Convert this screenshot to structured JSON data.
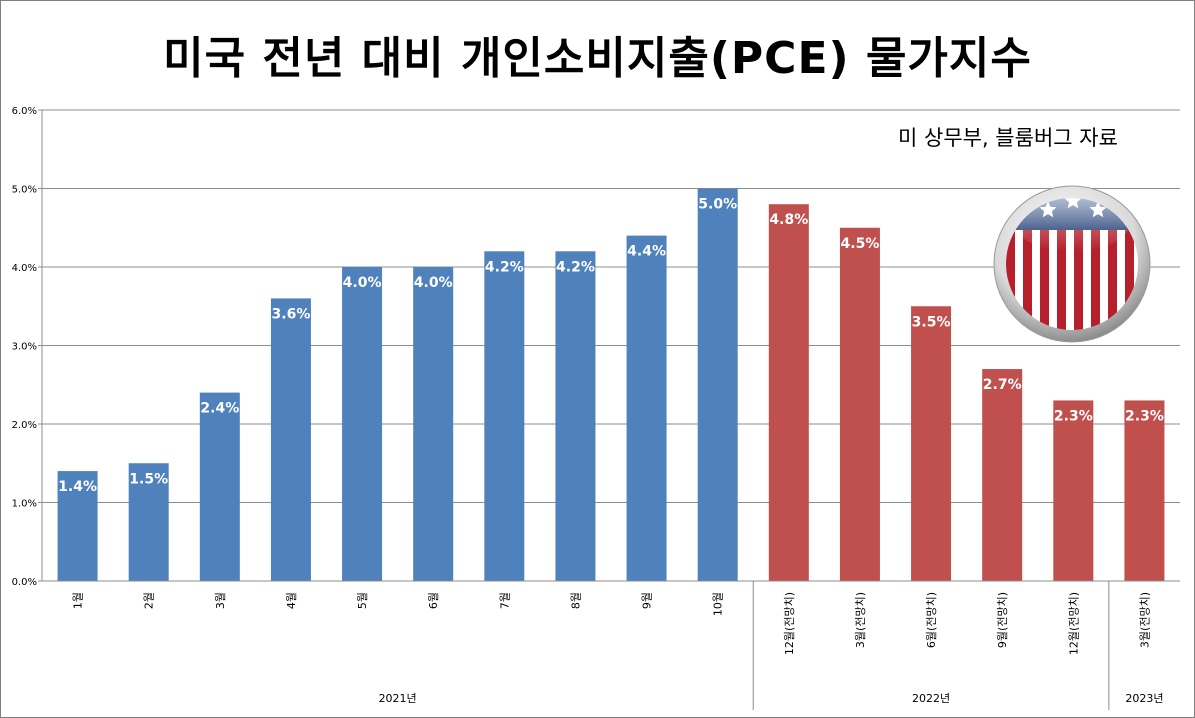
{
  "chart_data": {
    "type": "bar",
    "title": "미국 전년 대비 개인소비지출(PCE) 물가지수",
    "source_note": "미 상무부, 블룸버그 자료",
    "categories": [
      "1월",
      "2월",
      "3월",
      "4월",
      "5월",
      "6월",
      "7월",
      "8월",
      "9월",
      "10월",
      "12월(전망치)",
      "3월(전망치)",
      "6월(전망치)",
      "9월(전망치)",
      "12월(전망치)",
      "3월(전망치)"
    ],
    "groups": [
      {
        "label": "2021년",
        "from": 0,
        "to": 9
      },
      {
        "label": "2022년",
        "from": 10,
        "to": 14
      },
      {
        "label": "2023년",
        "from": 15,
        "to": 15
      }
    ],
    "values": [
      1.4,
      1.5,
      2.4,
      3.6,
      4.0,
      4.0,
      4.2,
      4.2,
      4.4,
      5.0,
      4.8,
      4.5,
      3.5,
      2.7,
      2.3,
      2.3
    ],
    "data_labels": [
      "1.4%",
      "1.5%",
      "2.4%",
      "3.6%",
      "4.0%",
      "4.0%",
      "4.2%",
      "4.2%",
      "4.4%",
      "5.0%",
      "4.8%",
      "4.5%",
      "3.5%",
      "2.7%",
      "2.3%",
      "2.3%"
    ],
    "kinds": [
      "actual",
      "actual",
      "actual",
      "actual",
      "actual",
      "actual",
      "actual",
      "actual",
      "actual",
      "actual",
      "forecast",
      "forecast",
      "forecast",
      "forecast",
      "forecast",
      "forecast"
    ],
    "colors": {
      "actual": "#4f81bd",
      "forecast": "#c0504d"
    },
    "ylim": [
      0,
      6.0
    ],
    "yticks": [
      "0.0%",
      "1.0%",
      "2.0%",
      "3.0%",
      "4.0%",
      "5.0%",
      "6.0%"
    ],
    "grid": true,
    "xlabel": "",
    "ylabel": ""
  },
  "badge": {
    "icon": "us-flag-badge-icon"
  }
}
